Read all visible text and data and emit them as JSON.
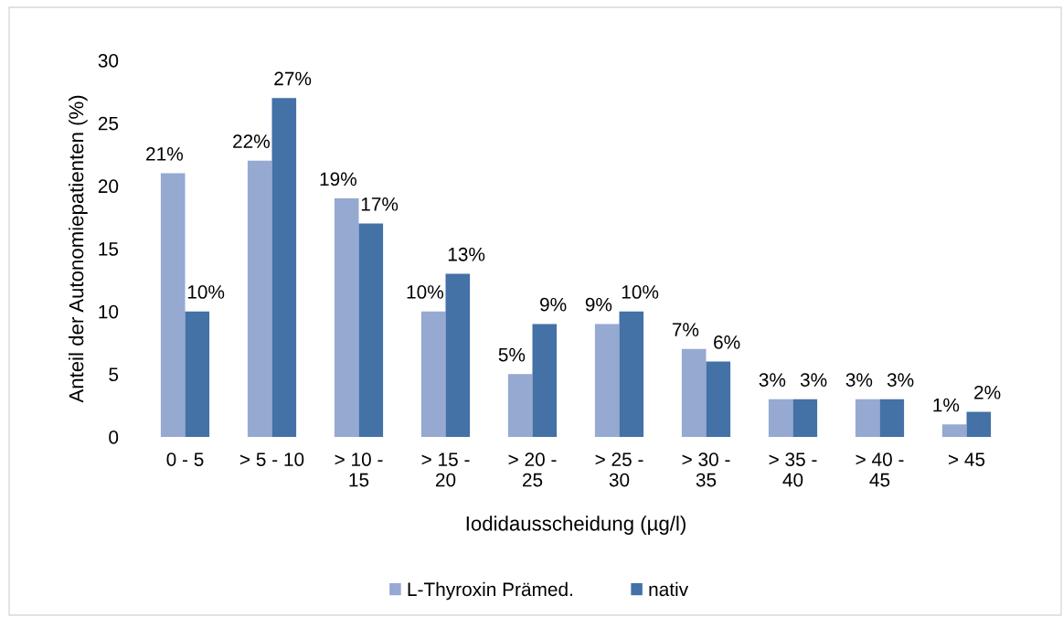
{
  "chart_data": {
    "type": "bar",
    "categories": [
      "0 - 5",
      "> 5 - 10",
      "> 10 -\n15",
      "> 15 -\n20",
      "> 20 -\n25",
      "> 25 -\n30",
      "> 30 -\n35",
      "> 35 -\n40",
      "> 40 -\n45",
      "> 45"
    ],
    "series": [
      {
        "name": "L-Thyroxin Prämed.",
        "color": "#95a9d1",
        "values": [
          21,
          22,
          19,
          10,
          5,
          9,
          7,
          3,
          3,
          1
        ],
        "value_labels": [
          "21%",
          "22%",
          "19%",
          "10%",
          "5%",
          "9%",
          "7%",
          "3%",
          "3%",
          "1%"
        ]
      },
      {
        "name": "nativ",
        "color": "#4471a6",
        "values": [
          10,
          27,
          17,
          13,
          9,
          10,
          6,
          3,
          3,
          2
        ],
        "value_labels": [
          "10%",
          "27%",
          "17%",
          "13%",
          "9%",
          "10%",
          "6%",
          "3%",
          "3%",
          "2%"
        ]
      }
    ],
    "xlabel": "Iodidausscheidung (µg/l)",
    "ylabel": "Anteil der Autonomiepatienten (%)",
    "ylim": [
      0,
      30
    ],
    "yticks": [
      0,
      5,
      10,
      15,
      20,
      25,
      30
    ],
    "legend": "bottom"
  }
}
